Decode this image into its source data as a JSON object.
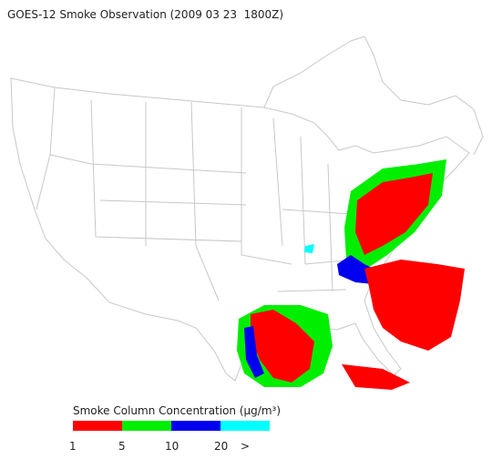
{
  "title": "GOES-12 Smoke Observation (2009 03 23  1800Z)",
  "legend": {
    "title": "Smoke Column Concentration (µg/m³)",
    "colors": [
      "#ff0000",
      "#00ee00",
      "#0000ee",
      "#00ffff"
    ],
    "labels": [
      "1",
      "5",
      "10",
      "20",
      ">"
    ]
  }
}
